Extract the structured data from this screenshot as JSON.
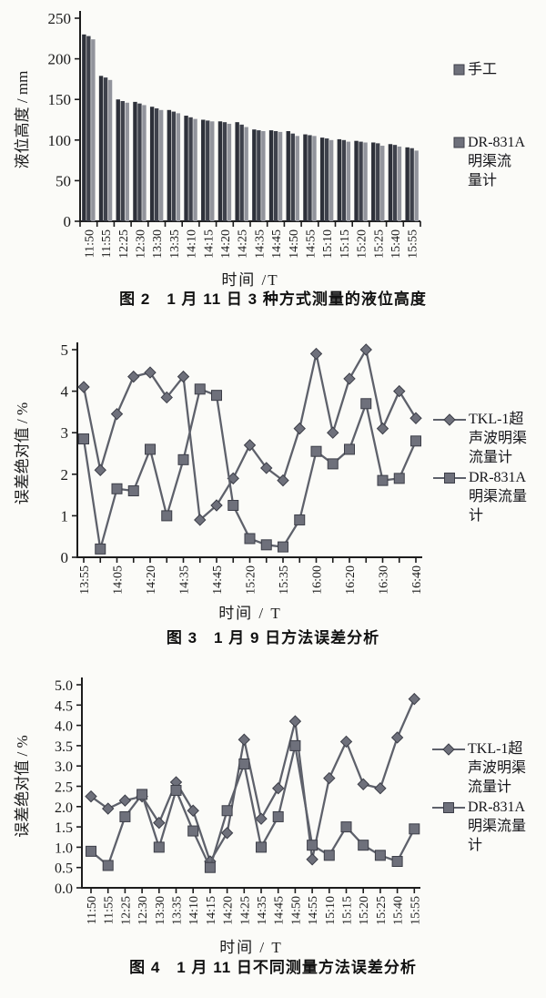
{
  "page": {
    "background": "#fbfbf8"
  },
  "palette": {
    "axis": "#1c1c1c",
    "text": "#1a1a1a",
    "bar_dark": "#2d3039",
    "bar_mid": "#3e414b",
    "bar_light": "#92949c",
    "line": "#5e616b",
    "marker_fill": "#6e707b",
    "marker_stroke": "#3c3e48"
  },
  "chart_data": [
    {
      "type": "bar",
      "title": "图 2　1 月 11 日 3 种方式测量的液位高度",
      "xlabel": "时间 /T",
      "ylabel": "液位高度 / mm",
      "ylim": [
        0,
        250
      ],
      "yticks": [
        0,
        50,
        100,
        150,
        200,
        250
      ],
      "ytick_labels": [
        "0",
        "50",
        "100",
        "150",
        "200",
        "250"
      ],
      "categories": [
        "11:50",
        "11:55",
        "12:25",
        "12:30",
        "13:30",
        "13:35",
        "14:10",
        "14:15",
        "14:20",
        "14:25",
        "14:35",
        "14:45",
        "14:50",
        "14:55",
        "15:10",
        "15:15",
        "15:20",
        "15:25",
        "15:40",
        "15:55"
      ],
      "series": [
        {
          "name": "手工",
          "values": [
            230,
            179,
            150,
            147,
            141,
            137,
            130,
            125,
            123,
            122,
            113,
            112,
            111,
            107,
            103,
            101,
            99,
            97,
            95,
            91
          ]
        },
        {
          "name": "",
          "values": [
            228,
            177,
            148,
            145,
            139,
            135,
            128,
            124,
            122,
            119,
            112,
            111,
            108,
            106,
            102,
            100,
            98,
            96,
            94,
            90
          ]
        },
        {
          "name": "DR-831A明渠流量计",
          "values": [
            224,
            174,
            146,
            143,
            137,
            133,
            126,
            123,
            120,
            116,
            111,
            110,
            105,
            105,
            100,
            98,
            97,
            93,
            92,
            87
          ]
        }
      ],
      "legend": [
        {
          "swatch": "square",
          "lines": [
            "手工"
          ]
        },
        {
          "swatch": "square",
          "lines": [
            "DR-831A",
            "明渠流",
            "量计"
          ]
        }
      ],
      "legend_position": "right",
      "grid": false
    },
    {
      "type": "line",
      "title": "图 3　1 月 9 日方法误差分析",
      "xlabel": "时间 / T",
      "ylabel": "误差绝对值 / %",
      "ylim": [
        0,
        5
      ],
      "yticks": [
        0,
        1,
        2,
        3,
        4,
        5
      ],
      "ytick_labels": [
        "0",
        "1",
        "2",
        "3",
        "4",
        "5"
      ],
      "x_tick_labels": [
        "13:55",
        "",
        "14:05",
        "",
        "14:20",
        "",
        "14:35",
        "",
        "14:45",
        "",
        "15:20",
        "",
        "15:35",
        "",
        "16:00",
        "",
        "16:20",
        "",
        "16:30",
        "",
        "16:40"
      ],
      "series": [
        {
          "name": "TKL-1超声波明渠流量计",
          "marker": "diamond",
          "values": [
            4.1,
            2.1,
            3.45,
            4.35,
            4.45,
            3.85,
            4.35,
            0.9,
            1.25,
            1.9,
            2.7,
            2.15,
            1.85,
            3.1,
            4.9,
            3.0,
            4.3,
            5.0,
            3.1,
            4.0,
            3.35
          ]
        },
        {
          "name": "DR-831A明渠流量计",
          "marker": "square",
          "values": [
            2.85,
            0.2,
            1.65,
            1.6,
            2.6,
            1.0,
            2.35,
            4.05,
            3.9,
            1.25,
            0.45,
            0.3,
            0.25,
            0.9,
            2.55,
            2.25,
            2.6,
            3.7,
            1.85,
            1.9,
            2.8
          ]
        }
      ],
      "legend": [
        {
          "swatch": "line-diamond",
          "lines": [
            "TKL-1超",
            "声波明渠",
            "流量计"
          ]
        },
        {
          "swatch": "line-square",
          "lines": [
            "DR-831A",
            "明渠流量",
            "计"
          ]
        }
      ],
      "legend_position": "right",
      "grid": false
    },
    {
      "type": "line",
      "title": "图 4　1 月 11 日不同测量方法误差分析",
      "xlabel": "时间 / T",
      "ylabel": "误差绝对值 / %",
      "ylim": [
        0,
        5
      ],
      "yticks": [
        0,
        0.5,
        1,
        1.5,
        2,
        2.5,
        3,
        3.5,
        4,
        4.5,
        5
      ],
      "ytick_labels": [
        "0.0",
        "0.5",
        "1.0",
        "1.5",
        "2.0",
        "2.5",
        "3.0",
        "3.5",
        "4.0",
        "4.5",
        "5.0"
      ],
      "x_tick_labels": [
        "11:50",
        "11:55",
        "12:25",
        "12:30",
        "13:30",
        "13:35",
        "14:10",
        "14:15",
        "14:20",
        "14:25",
        "14:35",
        "14:45",
        "14:50",
        "14:55",
        "15:10",
        "15:15",
        "15:20",
        "15:25",
        "15:40",
        "15:55"
      ],
      "series": [
        {
          "name": "TKL-1超声波明渠流量计",
          "marker": "diamond",
          "values": [
            2.25,
            1.95,
            2.15,
            2.25,
            1.6,
            2.6,
            1.9,
            0.65,
            1.35,
            3.65,
            1.7,
            2.45,
            4.1,
            0.7,
            2.7,
            3.6,
            2.55,
            2.45,
            3.7,
            4.65
          ]
        },
        {
          "name": "DR-831A明渠流量计",
          "marker": "square",
          "values": [
            0.9,
            0.55,
            1.75,
            2.3,
            1.0,
            2.4,
            1.4,
            0.5,
            1.9,
            3.05,
            1.0,
            1.75,
            3.5,
            1.05,
            0.8,
            1.5,
            1.05,
            0.8,
            0.65,
            1.45
          ]
        }
      ],
      "legend": [
        {
          "swatch": "line-diamond",
          "lines": [
            "TKL-1超",
            "声波明渠",
            "流量计"
          ]
        },
        {
          "swatch": "line-square",
          "lines": [
            "DR-831A",
            "明渠流量",
            "计"
          ]
        }
      ],
      "legend_position": "right",
      "grid": false
    }
  ]
}
